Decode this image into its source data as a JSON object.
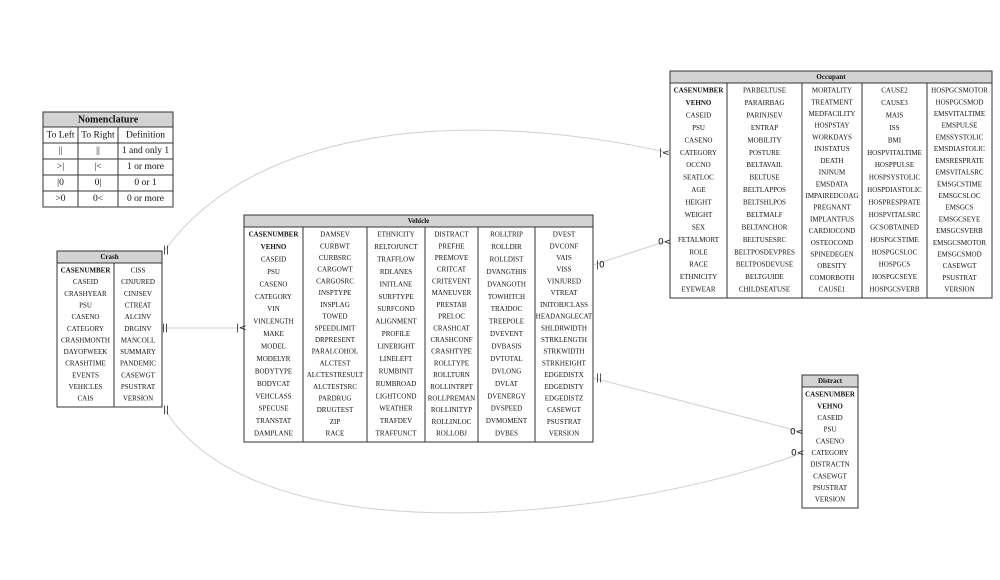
{
  "nomenclature": {
    "title": "Nomenclature",
    "headers": [
      "To Left",
      "To Right",
      "Definition"
    ],
    "rows": [
      [
        "||",
        "||",
        "1 and only 1"
      ],
      [
        ">|",
        "|<",
        "1 or more"
      ],
      [
        "|0",
        "0|",
        "0 or 1"
      ],
      [
        ">0",
        "0<",
        "0 or more"
      ]
    ]
  },
  "entities": [
    {
      "title": "Crash",
      "columns": [
        [
          "CASENUMBER",
          "CASEID",
          "CRASHYEAR",
          "PSU",
          "CASENO",
          "CATEGORY",
          "CRASHMONTH",
          "DAYOFWEEK",
          "CRASHTIME",
          "EVENTS",
          "VEHICLES",
          "CAIS"
        ],
        [
          "CISS",
          "CINJURED",
          "CINJSEV",
          "CTREAT",
          "ALCINV",
          "DRGINV",
          "MANCOLL",
          "SUMMARY",
          "PANDEMIC",
          "CASEWGT",
          "PSUSTRAT",
          "VERSION"
        ]
      ]
    },
    {
      "title": "Vehicle",
      "columns": [
        [
          "CASENUMBER",
          "VEHNO",
          "CASEID",
          "PSU",
          "CASENO",
          "CATEGORY",
          "VIN",
          "VINLENGTH",
          "MAKE",
          "MODEL",
          "MODELYR",
          "BODYTYPE",
          "BODYCAT",
          "VEHCLASS",
          "SPECUSE",
          "TRANSTAT",
          "DAMPLANE"
        ],
        [
          "DAMSEV",
          "CURBWT",
          "CURBSRC",
          "CARGOWT",
          "CARGOSRC",
          "INSPTYPE",
          "INSPLAG",
          "TOWED",
          "SPEEDLIMIT",
          "DRPRESENT",
          "PARALCOHOL",
          "ALCTEST",
          "ALCTESTRESULT",
          "ALCTESTSRC",
          "PARDRUG",
          "DRUGTEST",
          "ZIP",
          "RACE"
        ],
        [
          "ETHNICITY",
          "RELTOJUNCT",
          "TRAFFLOW",
          "RDLANES",
          "INITLANE",
          "SURFTYPE",
          "SURFCOND",
          "ALIGNMENT",
          "PROFILE",
          "LINERIGHT",
          "LINELEFT",
          "RUMBINIT",
          "RUMBROAD",
          "LIGHTCOND",
          "WEATHER",
          "TRAFDEV",
          "TRAFFUNCT"
        ],
        [
          "DISTRACT",
          "PREFHE",
          "PREMOVE",
          "CRITCAT",
          "CRITEVENT",
          "MANEUVER",
          "PRESTAB",
          "PRELOC",
          "CRASHCAT",
          "CRASHCONF",
          "CRASHTYPE",
          "ROLLTYPE",
          "ROLLTURN",
          "ROLLINTRPT",
          "ROLLPREMAN",
          "ROLLINITYP",
          "ROLLINLOC",
          "ROLLOBJ"
        ],
        [
          "ROLLTRIP",
          "ROLLDIR",
          "ROLLDIST",
          "DVANGTHIS",
          "DVANGOTH",
          "TOWHITCH",
          "TRAJDOC",
          "TREEPOLE",
          "DVEVENT",
          "DVBASIS",
          "DVTOTAL",
          "DVLONG",
          "DVLAT",
          "DVENERGY",
          "DVSPEED",
          "DVMOMENT",
          "DVBES"
        ],
        [
          "DVEST",
          "DVCONF",
          "VAIS",
          "VISS",
          "VINJURED",
          "VTREAT",
          "INITOBJCLASS",
          "HEADANGLECAT",
          "SHLDRWIDTH",
          "STRKLENGTH",
          "STRKWIDTH",
          "STRKHEIGHT",
          "EDGEDISTX",
          "EDGEDISTY",
          "EDGEDISTZ",
          "CASEWGT",
          "PSUSTRAT",
          "VERSION"
        ]
      ]
    },
    {
      "title": "Occupant",
      "columns": [
        [
          "CASENUMBER",
          "VEHNO",
          "CASEID",
          "PSU",
          "CASENO",
          "CATEGORY",
          "OCCNO",
          "SEATLOC",
          "AGE",
          "HEIGHT",
          "WEIGHT",
          "SEX",
          "FETALMORT",
          "ROLE",
          "RACE",
          "ETHNICITY",
          "EYEWEAR"
        ],
        [
          "PARBELTUSE",
          "PARAIRBAG",
          "PARINJSEV",
          "ENTRAP",
          "MOBILITY",
          "POSTURE",
          "BELTAVAIL",
          "BELTUSE",
          "BELTLAPPOS",
          "BELTSHLPOS",
          "BELTMALF",
          "BELTANCHOR",
          "BELTUSESRC",
          "BELTPOSDEVPRES",
          "BELTPOSDEVUSE",
          "BELTGUIDE",
          "CHILDSEATUSE"
        ],
        [
          "MORTALITY",
          "TREATMENT",
          "MEDFACILITY",
          "HOSPSTAY",
          "WORKDAYS",
          "INJSTATUS",
          "DEATH",
          "INJNUM",
          "EMSDATA",
          "IMPAIREDCOAG",
          "PREGNANT",
          "IMPLANTFUS",
          "CARDIOCOND",
          "OSTEOCOND",
          "SPINEDEGEN",
          "OBESITY",
          "COMORBOTH",
          "CAUSE1"
        ],
        [
          "CAUSE2",
          "CAUSE3",
          "MAIS",
          "ISS",
          "BMI",
          "HOSPVITALTIME",
          "HOSPPULSE",
          "HOSPSYSTOLIC",
          "HOSPDIASTOLIC",
          "HOSPRESPRATE",
          "HOSPVITALSRC",
          "GCSOBTAINED",
          "HOSPGCSTIME",
          "HOSPGCSLOC",
          "HOSPGCS",
          "HOSPGCSEYE",
          "HOSPGCSVERB"
        ],
        [
          "HOSPGCSMOTOR",
          "HOSPGCSMOD",
          "EMSVITALTIME",
          "EMSPULSE",
          "EMSSYSTOLIC",
          "EMSDIASTOLIC",
          "EMSRESPRATE",
          "EMSVITALSRC",
          "EMSGCSTIME",
          "EMSGCSLOC",
          "EMSGCS",
          "EMSGCSEYE",
          "EMSGCSVERB",
          "EMSGCSMOTOR",
          "EMSGCSMOD",
          "CASEWGT",
          "PSUSTRAT",
          "VERSION"
        ]
      ]
    },
    {
      "title": "Distract",
      "columns": [
        [
          "CASENUMBER",
          "VEHNO",
          "CASEID",
          "PSU",
          "CASENO",
          "CATEGORY",
          "DISTRACTN",
          "CASEWGT",
          "PSUSTRAT",
          "VERSION"
        ]
      ]
    }
  ],
  "relationships": [
    {
      "start": "||",
      "end": "|<"
    },
    {
      "start": "||",
      "end": "|<"
    },
    {
      "start": "||",
      "end": "0<"
    },
    {
      "start": "|0",
      "end": "0<"
    },
    {
      "start": "||",
      "end": "0<"
    }
  ]
}
